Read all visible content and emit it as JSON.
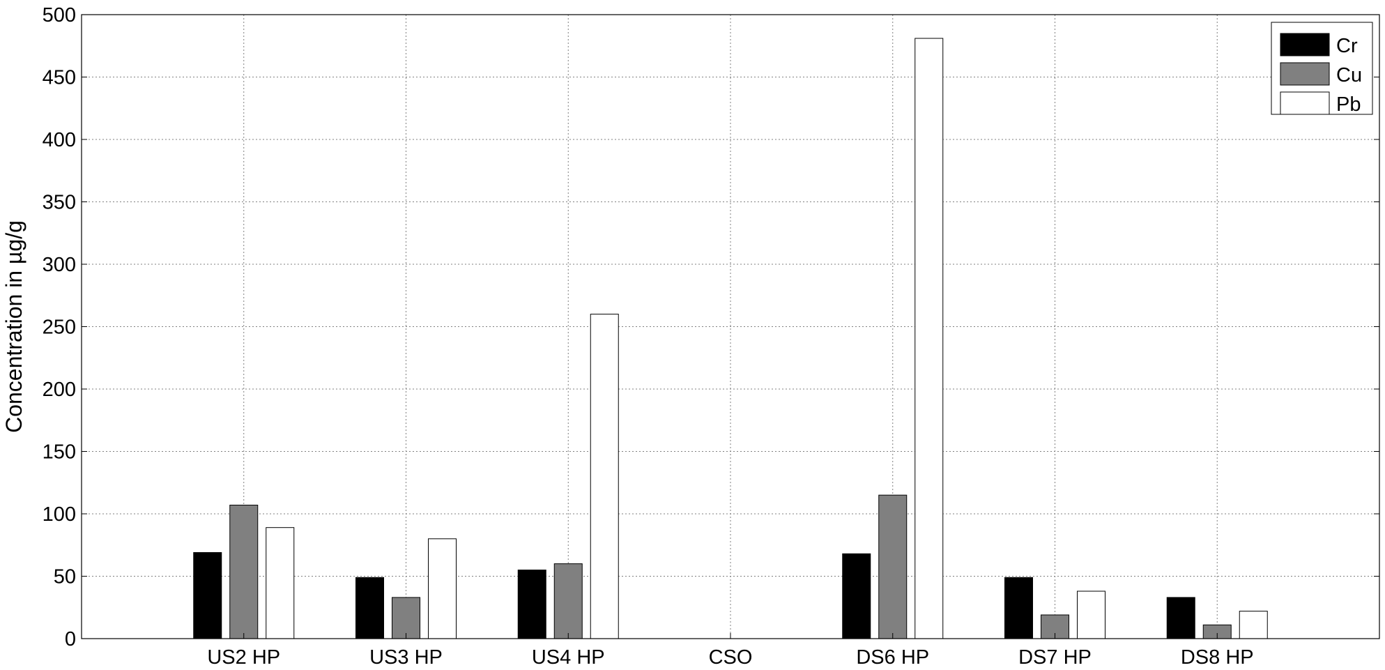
{
  "chart_data": {
    "type": "bar",
    "title": "",
    "xlabel": "",
    "ylabel": "Concentration in µg/g",
    "ylim": [
      0,
      500
    ],
    "yticks": [
      "0",
      "50",
      "100",
      "150",
      "200",
      "250",
      "300",
      "350",
      "400",
      "450",
      "500"
    ],
    "categories": [
      "US2 HP",
      "US3 HP",
      "US4 HP",
      "CSO",
      "DS6 HP",
      "DS7 HP",
      "DS8 HP"
    ],
    "series": [
      {
        "name": "Cr",
        "color": "#000000",
        "values": [
          69,
          49,
          55,
          0,
          68,
          49,
          33
        ]
      },
      {
        "name": "Cu",
        "color": "#808080",
        "values": [
          107,
          33,
          60,
          0,
          115,
          19,
          11
        ]
      },
      {
        "name": "Pb",
        "color": "#ffffff",
        "values": [
          89,
          80,
          260,
          0,
          481,
          38,
          22
        ]
      }
    ],
    "grid": true,
    "legend_position": "top-right"
  }
}
